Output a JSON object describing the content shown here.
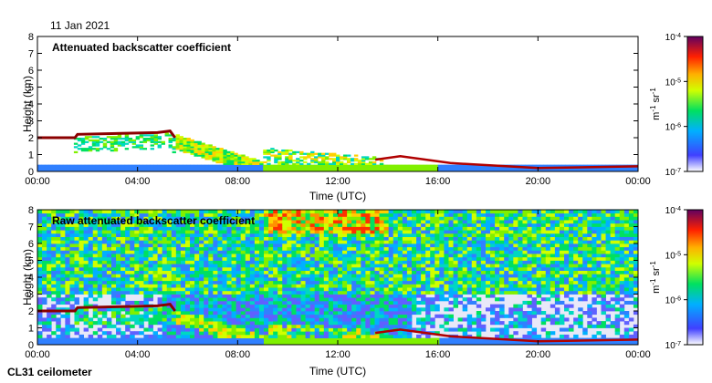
{
  "date_label": "11 Jan 2021",
  "instrument_label": "CL31 ceilometer",
  "chart_data": [
    {
      "type": "heatmap",
      "title": "Attenuated backscatter coefficient",
      "xlabel": "Time (UTC)",
      "ylabel": "Height (km)",
      "x_ticks": [
        "00:00",
        "04:00",
        "08:00",
        "12:00",
        "16:00",
        "20:00",
        "00:00"
      ],
      "y_ticks": [
        "0",
        "1",
        "2",
        "3",
        "4",
        "5",
        "6",
        "7",
        "8"
      ],
      "xlim_hours": [
        0,
        24
      ],
      "ylim_km": [
        0,
        8
      ],
      "colorbar": {
        "scale": "log",
        "unit": "m-1 sr-1",
        "tick_bases": [
          "10",
          "10",
          "10",
          "10"
        ],
        "tick_exponents": [
          "-7",
          "-6",
          "-5",
          "-4"
        ],
        "range": [
          1e-07,
          0.0001
        ]
      },
      "cloud_layer_km": [
        {
          "t": 0,
          "h": 2.0
        },
        {
          "t": 1.5,
          "h": 2.0
        },
        {
          "t": 1.6,
          "h": 2.2
        },
        {
          "t": 4.8,
          "h": 2.3
        },
        {
          "t": 5.3,
          "h": 2.4
        },
        {
          "t": 5.5,
          "h": 2.0
        }
      ],
      "boundary_layer_km": [
        {
          "t": 13.5,
          "h": 0.7
        },
        {
          "t": 14.5,
          "h": 0.9
        },
        {
          "t": 16.5,
          "h": 0.5
        },
        {
          "t": 20,
          "h": 0.2
        },
        {
          "t": 24,
          "h": 0.3
        }
      ]
    },
    {
      "type": "heatmap",
      "title": "Raw attenuated backscatter coefficient",
      "xlabel": "Time (UTC)",
      "ylabel": "Height (km)",
      "x_ticks": [
        "00:00",
        "04:00",
        "08:00",
        "12:00",
        "16:00",
        "20:00",
        "00:00"
      ],
      "y_ticks": [
        "0",
        "1",
        "2",
        "3",
        "4",
        "5",
        "6",
        "7",
        "8"
      ],
      "xlim_hours": [
        0,
        24
      ],
      "ylim_km": [
        0,
        8
      ],
      "colorbar": {
        "scale": "log",
        "unit": "m-1 sr-1",
        "tick_bases": [
          "10",
          "10",
          "10",
          "10"
        ],
        "tick_exponents": [
          "-7",
          "-6",
          "-5",
          "-4"
        ],
        "range": [
          1e-07,
          0.0001
        ]
      },
      "cloud_layer_km": [
        {
          "t": 0,
          "h": 2.0
        },
        {
          "t": 1.5,
          "h": 2.0
        },
        {
          "t": 1.6,
          "h": 2.2
        },
        {
          "t": 4.8,
          "h": 2.3
        },
        {
          "t": 5.3,
          "h": 2.4
        },
        {
          "t": 5.5,
          "h": 2.0
        }
      ],
      "boundary_layer_km": [
        {
          "t": 13.5,
          "h": 0.7
        },
        {
          "t": 14.5,
          "h": 0.9
        },
        {
          "t": 16.5,
          "h": 0.5
        },
        {
          "t": 20,
          "h": 0.2
        },
        {
          "t": 24,
          "h": 0.3
        }
      ]
    }
  ]
}
